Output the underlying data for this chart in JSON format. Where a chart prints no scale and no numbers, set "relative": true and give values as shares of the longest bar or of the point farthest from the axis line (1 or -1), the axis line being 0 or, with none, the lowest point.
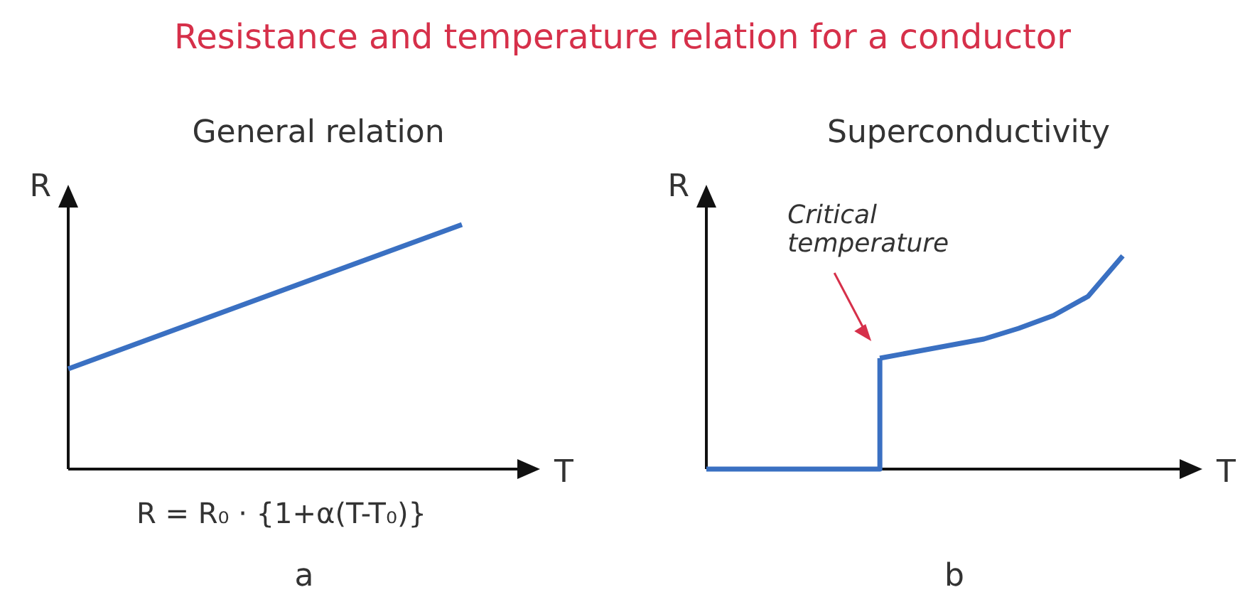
{
  "chart_data": [
    {
      "type": "line",
      "title": "Resistance and temperature relation for a conductor",
      "subtitle": "General relation",
      "xlabel": "T",
      "ylabel": "R",
      "relative": true,
      "categories": [
        null,
        null
      ],
      "series": [
        {
          "color": "#3a70c2",
          "values": [
            0.41,
            1
          ]
        }
      ],
      "annotations": [
        "R = R₀ · {1+α(T-T₀)}",
        "a"
      ]
    },
    {
      "type": "line",
      "subtitle": "Superconductivity",
      "xlabel": "T",
      "ylabel": "R",
      "relative": true,
      "categories": [
        null,
        null,
        null,
        null,
        null,
        null,
        null,
        null,
        null,
        null,
        null,
        null,
        null
      ],
      "series": [
        {
          "type": "step",
          "color": "#3a70c2",
          "values": [
            0,
            0,
            0,
            0,
            0,
            0.52,
            null,
            null,
            null,
            null,
            null,
            null,
            null
          ]
        },
        {
          "color": "#3a70c2",
          "values": [
            null,
            null,
            null,
            null,
            null,
            0.52,
            0.55,
            0.58,
            0.61,
            0.66,
            0.72,
            0.81,
            1
          ]
        }
      ],
      "annotations": [
        "Critical temperature",
        "b"
      ]
    }
  ]
}
